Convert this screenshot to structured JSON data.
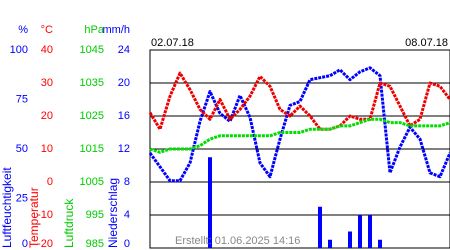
{
  "dates": [
    "02.07.18",
    "08.07.18"
  ],
  "footer": "Erstellt: 01.06.2025 14:16",
  "chart_data": [
    {
      "type": "line",
      "unit": "%",
      "ylabel": "Luftfeuchtigkeit",
      "color": "#0000ff",
      "ylim": [
        0,
        100
      ],
      "yticks": [
        0,
        25,
        50,
        75,
        100
      ],
      "series": [
        {
          "name": "Luftfeuchtigkeit",
          "color": "#0000ff",
          "values": [
            48,
            41,
            34,
            34,
            43,
            64,
            79,
            68,
            64,
            77,
            66,
            43,
            36,
            55,
            72,
            74,
            85,
            86,
            87,
            90,
            85,
            89,
            91,
            87,
            38,
            51,
            61,
            55,
            38,
            36,
            48
          ]
        }
      ]
    },
    {
      "type": "line",
      "unit": "°C",
      "ylabel": "Temperatur",
      "color": "#ff0000",
      "ylim": [
        -20,
        40
      ],
      "yticks": [
        -20,
        -10,
        0,
        10,
        20,
        30,
        40
      ],
      "grid": true,
      "series": [
        {
          "name": "Temperatur",
          "color": "#ee0000",
          "values": [
            21,
            16,
            26,
            33,
            28,
            22,
            19,
            25,
            19,
            22,
            26,
            32,
            29,
            22,
            20,
            23,
            20,
            16,
            16,
            17,
            20,
            19,
            19,
            30,
            29,
            23,
            17,
            19,
            30,
            29,
            25
          ]
        }
      ]
    },
    {
      "type": "line",
      "unit": "hPa",
      "ylabel": "Luftdruck",
      "color": "#00cc00",
      "ylim": [
        985,
        1045
      ],
      "yticks": [
        985,
        995,
        1005,
        1015,
        1025,
        1035,
        1045
      ],
      "series": [
        {
          "name": "Luftdruck",
          "color": "#00dd00",
          "values": [
            1015,
            1014,
            1015,
            1015,
            1015,
            1016,
            1018,
            1019,
            1019,
            1019,
            1019,
            1019,
            1019,
            1020,
            1020,
            1020,
            1021,
            1021,
            1021,
            1022,
            1022,
            1023,
            1024,
            1024,
            1023,
            1023,
            1022,
            1022,
            1022,
            1022,
            1023
          ]
        }
      ]
    },
    {
      "type": "bar",
      "unit": "mm/h",
      "ylabel": "Niederschlag",
      "color": "#0000ff",
      "ylim": [
        0,
        24
      ],
      "yticks": [
        0,
        4,
        8,
        12,
        16,
        20,
        24
      ],
      "series": [
        {
          "name": "Niederschlag",
          "color": "#0000ff",
          "values": [
            0,
            0,
            0,
            0,
            0,
            0,
            11,
            0,
            0,
            0,
            0,
            0,
            0,
            0,
            0,
            0,
            0,
            5,
            1,
            0,
            2,
            4,
            4,
            1,
            0,
            0,
            0,
            0,
            0,
            0,
            0
          ]
        }
      ]
    }
  ]
}
